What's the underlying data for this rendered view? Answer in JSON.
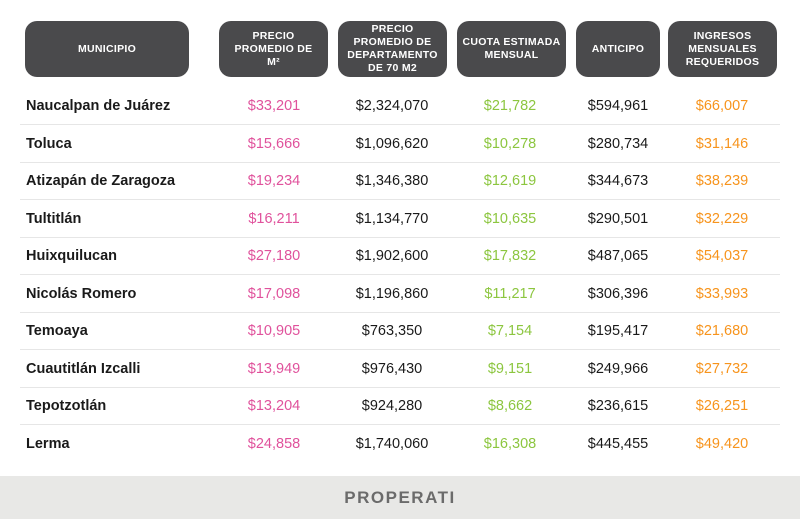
{
  "chart_data": {
    "type": "table",
    "columns": [
      "MUNICIPIO",
      "PRECIO\nPROMEDIO DE\nM²",
      "PRECIO\nPROMEDIO DE\nDEPARTAMENTO\nDE 70 M2",
      "CUOTA ESTIMADA\nMENSUAL",
      "ANTICIPO",
      "INGRESOS\nMENSUALES\nREQUERIDOS"
    ],
    "rows": [
      [
        "Naucalpan de Juárez",
        "$33,201",
        "$2,324,070",
        "$21,782",
        "$594,961",
        "$66,007"
      ],
      [
        "Toluca",
        "$15,666",
        "$1,096,620",
        "$10,278",
        "$280,734",
        "$31,146"
      ],
      [
        "Atizapán de Zaragoza",
        "$19,234",
        "$1,346,380",
        "$12,619",
        "$344,673",
        "$38,239"
      ],
      [
        "Tultitlán",
        "$16,211",
        "$1,134,770",
        "$10,635",
        "$290,501",
        "$32,229"
      ],
      [
        "Huixquilucan",
        "$27,180",
        "$1,902,600",
        "$17,832",
        "$487,065",
        "$54,037"
      ],
      [
        "Nicolás Romero",
        "$17,098",
        "$1,196,860",
        "$11,217",
        "$306,396",
        "$33,993"
      ],
      [
        "Temoaya",
        "$10,905",
        "$763,350",
        "$7,154",
        "$195,417",
        "$21,680"
      ],
      [
        "Cuautitlán Izcalli",
        "$13,949",
        "$976,430",
        "$9,151",
        "$249,966",
        "$27,732"
      ],
      [
        "Tepotzotlán",
        "$13,204",
        "$924,280",
        "$8,662",
        "$236,615",
        "$26,251"
      ],
      [
        "Lerma",
        "$24,858",
        "$1,740,060",
        "$16,308",
        "$445,455",
        "$49,420"
      ]
    ],
    "column_colors": [
      "#1a1a1a",
      "#e0529c",
      "#1a1a1a",
      "#8cc63f",
      "#1a1a1a",
      "#f7941d"
    ],
    "header_color": "#4a4a4c"
  },
  "footer": {
    "brand": "PROPERATI"
  }
}
